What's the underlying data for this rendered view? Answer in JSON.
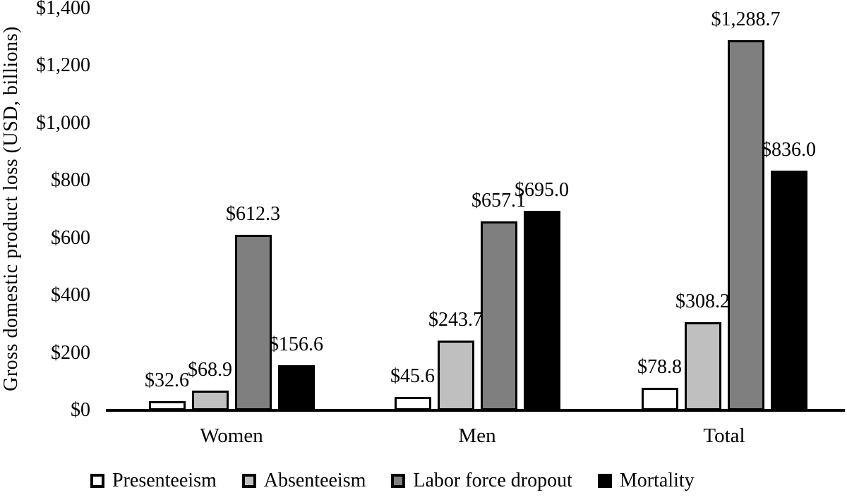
{
  "chart_data": {
    "type": "bar",
    "title": "",
    "xlabel": "",
    "ylabel": "Gross domestic product loss (USD, billions)",
    "ylim": [
      0,
      1400
    ],
    "ytick_values": [
      0,
      200,
      400,
      600,
      800,
      1000,
      1200,
      1400
    ],
    "ytick_labels": [
      "$0",
      "$200",
      "$400",
      "$600",
      "$800",
      "$1,000",
      "$1,200",
      "$1,400"
    ],
    "categories": [
      "Women",
      "Men",
      "Total"
    ],
    "series": [
      {
        "name": "Presenteeism",
        "color": "#ffffff",
        "values": [
          32.6,
          45.6,
          78.8
        ],
        "data_labels": [
          "$32.6",
          "$45.6",
          "$78.8"
        ]
      },
      {
        "name": "Absenteeism",
        "color": "#bfbfbf",
        "values": [
          68.9,
          243.7,
          308.2
        ],
        "data_labels": [
          "$68.9",
          "$243.7",
          "$308.2"
        ]
      },
      {
        "name": "Labor force dropout",
        "color": "#7f7f7f",
        "values": [
          612.3,
          657.1,
          1288.7
        ],
        "data_labels": [
          "$612.3",
          "$657.1",
          "$1,288.7"
        ]
      },
      {
        "name": "Mortality",
        "color": "#000000",
        "values": [
          156.6,
          695.0,
          836.0
        ],
        "data_labels": [
          "$156.6",
          "$695.0",
          "$836.0"
        ]
      }
    ],
    "legend_position": "bottom",
    "grid": false,
    "bar_border_color": "#000000",
    "axis_color": "#000000",
    "background_color": "#ffffff"
  }
}
